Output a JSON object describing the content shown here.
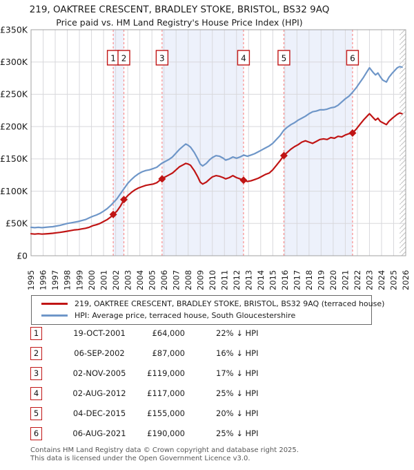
{
  "title": {
    "line1": "219, OAKTREE CRESCENT, BRADLEY STOKE, BRISTOL, BS32 9AQ",
    "line2": "Price paid vs. HM Land Registry's House Price Index (HPI)"
  },
  "legend": {
    "items": [
      {
        "label": "219, OAKTREE CRESCENT, BRADLEY STOKE, BRISTOL, BS32 9AQ (terraced house)",
        "color": "#c01414"
      },
      {
        "label": "HPI: Average price, terraced house, South Gloucestershire",
        "color": "#6e96c8"
      }
    ]
  },
  "footer": {
    "line1": "Contains HM Land Registry data © Crown copyright and database right 2025.",
    "line2": "This data is licensed under the Open Government Licence v3.0."
  },
  "chart_data": {
    "type": "line",
    "title": "219, OAKTREE CRESCENT, BRADLEY STOKE, BRISTOL, BS32 9AQ — Price paid vs. HPI",
    "x_range": [
      1995,
      2026
    ],
    "y_range": [
      0,
      350
    ],
    "y_unit": "£K",
    "grid": true,
    "legend_position": "bottom",
    "y_ticks": [
      {
        "v": 0,
        "label": "£0"
      },
      {
        "v": 50,
        "label": "£50K"
      },
      {
        "v": 100,
        "label": "£100K"
      },
      {
        "v": 150,
        "label": "£150K"
      },
      {
        "v": 200,
        "label": "£200K"
      },
      {
        "v": 250,
        "label": "£250K"
      },
      {
        "v": 300,
        "label": "£300K"
      },
      {
        "v": 350,
        "label": "£350K"
      }
    ],
    "colors": {
      "property": "#c01414",
      "hpi": "#6e96c8",
      "sale_dotted_line": "#f98b8b",
      "ownership_band": "#edf1fb",
      "grid": "#d8d8dc",
      "border": "#a0a0a0",
      "hatch": "#c4c4c4",
      "label_text": "#1b1b1b"
    },
    "owned_bands": [
      [
        2001.8,
        2002.68
      ],
      [
        2005.84,
        2012.58
      ],
      [
        2015.92,
        2021.6
      ]
    ],
    "future_band": [
      2025.5,
      2026
    ],
    "sales": [
      {
        "n": "1",
        "date": "19-OCT-2001",
        "year": 2001.8,
        "price_k": 64,
        "price": "£64,000",
        "below_hpi": "22% ↓ HPI"
      },
      {
        "n": "2",
        "date": "06-SEP-2002",
        "year": 2002.68,
        "price_k": 87,
        "price": "£87,000",
        "below_hpi": "16% ↓ HPI"
      },
      {
        "n": "3",
        "date": "02-NOV-2005",
        "year": 2005.84,
        "price_k": 119,
        "price": "£119,000",
        "below_hpi": "17% ↓ HPI"
      },
      {
        "n": "4",
        "date": "02-AUG-2012",
        "year": 2012.58,
        "price_k": 117,
        "price": "£117,000",
        "below_hpi": "25% ↓ HPI"
      },
      {
        "n": "5",
        "date": "04-DEC-2015",
        "year": 2015.92,
        "price_k": 155,
        "price": "£155,000",
        "below_hpi": "20% ↓ HPI"
      },
      {
        "n": "6",
        "date": "06-AUG-2021",
        "year": 2021.6,
        "price_k": 190,
        "price": "£190,000",
        "below_hpi": "25% ↓ HPI"
      }
    ],
    "series": [
      {
        "name": "HPI: Average price, terraced house, South Gloucestershire",
        "color": "#6e96c8",
        "points": [
          [
            1995.0,
            44
          ],
          [
            1995.3,
            43.5
          ],
          [
            1995.6,
            44
          ],
          [
            1995.9,
            43.5
          ],
          [
            1996.2,
            44
          ],
          [
            1996.5,
            44.5
          ],
          [
            1996.8,
            45
          ],
          [
            1997.1,
            46
          ],
          [
            1997.4,
            47
          ],
          [
            1997.7,
            48.5
          ],
          [
            1998.0,
            50
          ],
          [
            1998.3,
            51
          ],
          [
            1998.6,
            52
          ],
          [
            1998.9,
            53
          ],
          [
            1999.2,
            54.5
          ],
          [
            1999.5,
            56
          ],
          [
            1999.8,
            58.5
          ],
          [
            2000.1,
            61
          ],
          [
            2000.4,
            63
          ],
          [
            2000.7,
            65.5
          ],
          [
            2001.0,
            69
          ],
          [
            2001.3,
            73
          ],
          [
            2001.6,
            78
          ],
          [
            2001.8,
            82
          ],
          [
            2002.1,
            88
          ],
          [
            2002.4,
            96
          ],
          [
            2002.7,
            104
          ],
          [
            2003.0,
            112
          ],
          [
            2003.3,
            118
          ],
          [
            2003.6,
            123
          ],
          [
            2003.9,
            127
          ],
          [
            2004.2,
            130
          ],
          [
            2004.5,
            132
          ],
          [
            2004.8,
            133
          ],
          [
            2005.1,
            135
          ],
          [
            2005.4,
            137
          ],
          [
            2005.8,
            143
          ],
          [
            2006.1,
            146
          ],
          [
            2006.4,
            149
          ],
          [
            2006.7,
            153
          ],
          [
            2007.0,
            159
          ],
          [
            2007.3,
            165
          ],
          [
            2007.6,
            170
          ],
          [
            2007.8,
            173
          ],
          [
            2008.0,
            171
          ],
          [
            2008.2,
            168
          ],
          [
            2008.5,
            160
          ],
          [
            2008.8,
            150
          ],
          [
            2009.0,
            142
          ],
          [
            2009.2,
            139
          ],
          [
            2009.5,
            143
          ],
          [
            2009.8,
            149
          ],
          [
            2010.0,
            152
          ],
          [
            2010.3,
            155
          ],
          [
            2010.6,
            154
          ],
          [
            2010.9,
            151
          ],
          [
            2011.1,
            148
          ],
          [
            2011.4,
            150
          ],
          [
            2011.7,
            153
          ],
          [
            2012.0,
            151
          ],
          [
            2012.3,
            153
          ],
          [
            2012.6,
            156
          ],
          [
            2012.9,
            154
          ],
          [
            2013.2,
            156
          ],
          [
            2013.5,
            158
          ],
          [
            2013.8,
            161
          ],
          [
            2014.1,
            164
          ],
          [
            2014.4,
            167
          ],
          [
            2014.7,
            170
          ],
          [
            2015.0,
            174
          ],
          [
            2015.3,
            180
          ],
          [
            2015.6,
            186
          ],
          [
            2015.9,
            194
          ],
          [
            2016.2,
            199
          ],
          [
            2016.5,
            203
          ],
          [
            2016.8,
            206
          ],
          [
            2017.1,
            210
          ],
          [
            2017.4,
            213
          ],
          [
            2017.7,
            216
          ],
          [
            2018.0,
            220
          ],
          [
            2018.3,
            223
          ],
          [
            2018.6,
            224
          ],
          [
            2018.9,
            226
          ],
          [
            2019.2,
            226
          ],
          [
            2019.5,
            227
          ],
          [
            2019.8,
            229
          ],
          [
            2020.1,
            230
          ],
          [
            2020.4,
            233
          ],
          [
            2020.7,
            238
          ],
          [
            2021.0,
            243
          ],
          [
            2021.3,
            247
          ],
          [
            2021.6,
            253
          ],
          [
            2021.9,
            260
          ],
          [
            2022.2,
            268
          ],
          [
            2022.5,
            276
          ],
          [
            2022.8,
            285
          ],
          [
            2023.0,
            291
          ],
          [
            2023.3,
            284
          ],
          [
            2023.5,
            280
          ],
          [
            2023.7,
            283
          ],
          [
            2023.9,
            277
          ],
          [
            2024.1,
            272
          ],
          [
            2024.4,
            269
          ],
          [
            2024.6,
            276
          ],
          [
            2024.9,
            283
          ],
          [
            2025.1,
            287
          ],
          [
            2025.3,
            291
          ],
          [
            2025.5,
            293
          ],
          [
            2025.7,
            292
          ]
        ]
      },
      {
        "name": "219, OAKTREE CRESCENT, BRADLEY STOKE, BRISTOL, BS32 9AQ (terraced house)",
        "color": "#c01414",
        "points": [
          [
            1995.0,
            34
          ],
          [
            1995.3,
            33.5
          ],
          [
            1995.6,
            34
          ],
          [
            1995.9,
            33.5
          ],
          [
            1996.2,
            33.8
          ],
          [
            1996.5,
            34.2
          ],
          [
            1996.8,
            34.8
          ],
          [
            1997.1,
            35.5
          ],
          [
            1997.4,
            36.2
          ],
          [
            1997.7,
            37
          ],
          [
            1998.0,
            38
          ],
          [
            1998.3,
            39
          ],
          [
            1998.6,
            40
          ],
          [
            1998.9,
            40.5
          ],
          [
            1999.2,
            41.5
          ],
          [
            1999.5,
            42.5
          ],
          [
            1999.8,
            44
          ],
          [
            2000.1,
            46.5
          ],
          [
            2000.4,
            48
          ],
          [
            2000.7,
            50
          ],
          [
            2001.0,
            53
          ],
          [
            2001.3,
            56
          ],
          [
            2001.6,
            60
          ],
          [
            2001.8,
            64
          ],
          [
            2002.1,
            69
          ],
          [
            2002.4,
            77
          ],
          [
            2002.7,
            87
          ],
          [
            2003.0,
            93
          ],
          [
            2003.3,
            98
          ],
          [
            2003.6,
            102
          ],
          [
            2003.9,
            105
          ],
          [
            2004.2,
            107
          ],
          [
            2004.5,
            109
          ],
          [
            2004.8,
            110
          ],
          [
            2005.1,
            111
          ],
          [
            2005.4,
            113
          ],
          [
            2005.8,
            119
          ],
          [
            2006.1,
            122
          ],
          [
            2006.4,
            125
          ],
          [
            2006.7,
            128
          ],
          [
            2007.0,
            133
          ],
          [
            2007.3,
            138
          ],
          [
            2007.6,
            141
          ],
          [
            2007.8,
            143
          ],
          [
            2008.0,
            142
          ],
          [
            2008.2,
            140
          ],
          [
            2008.5,
            132
          ],
          [
            2008.8,
            122
          ],
          [
            2009.0,
            114
          ],
          [
            2009.2,
            111
          ],
          [
            2009.5,
            114
          ],
          [
            2009.8,
            119
          ],
          [
            2010.0,
            122
          ],
          [
            2010.3,
            124
          ],
          [
            2010.6,
            123
          ],
          [
            2010.9,
            121
          ],
          [
            2011.1,
            119
          ],
          [
            2011.4,
            121
          ],
          [
            2011.7,
            124
          ],
          [
            2012.0,
            121
          ],
          [
            2012.3,
            119
          ],
          [
            2012.6,
            117
          ],
          [
            2012.9,
            115
          ],
          [
            2013.2,
            116
          ],
          [
            2013.5,
            118
          ],
          [
            2013.8,
            120
          ],
          [
            2014.1,
            123
          ],
          [
            2014.4,
            126
          ],
          [
            2014.7,
            128
          ],
          [
            2015.0,
            133
          ],
          [
            2015.3,
            140
          ],
          [
            2015.6,
            147
          ],
          [
            2015.9,
            155
          ],
          [
            2016.2,
            160
          ],
          [
            2016.5,
            165
          ],
          [
            2016.8,
            169
          ],
          [
            2017.1,
            172
          ],
          [
            2017.4,
            176
          ],
          [
            2017.7,
            178
          ],
          [
            2018.0,
            176
          ],
          [
            2018.3,
            174
          ],
          [
            2018.6,
            177
          ],
          [
            2018.9,
            180
          ],
          [
            2019.2,
            181
          ],
          [
            2019.5,
            180
          ],
          [
            2019.8,
            183
          ],
          [
            2020.1,
            182
          ],
          [
            2020.4,
            185
          ],
          [
            2020.7,
            184
          ],
          [
            2021.0,
            187
          ],
          [
            2021.3,
            189
          ],
          [
            2021.6,
            190
          ],
          [
            2021.9,
            196
          ],
          [
            2022.2,
            203
          ],
          [
            2022.5,
            210
          ],
          [
            2022.8,
            216
          ],
          [
            2023.0,
            220
          ],
          [
            2023.3,
            214
          ],
          [
            2023.5,
            210
          ],
          [
            2023.7,
            213
          ],
          [
            2023.9,
            208
          ],
          [
            2024.1,
            206
          ],
          [
            2024.4,
            203
          ],
          [
            2024.6,
            208
          ],
          [
            2024.9,
            213
          ],
          [
            2025.1,
            216
          ],
          [
            2025.3,
            219
          ],
          [
            2025.5,
            221
          ],
          [
            2025.7,
            220
          ]
        ]
      }
    ]
  }
}
